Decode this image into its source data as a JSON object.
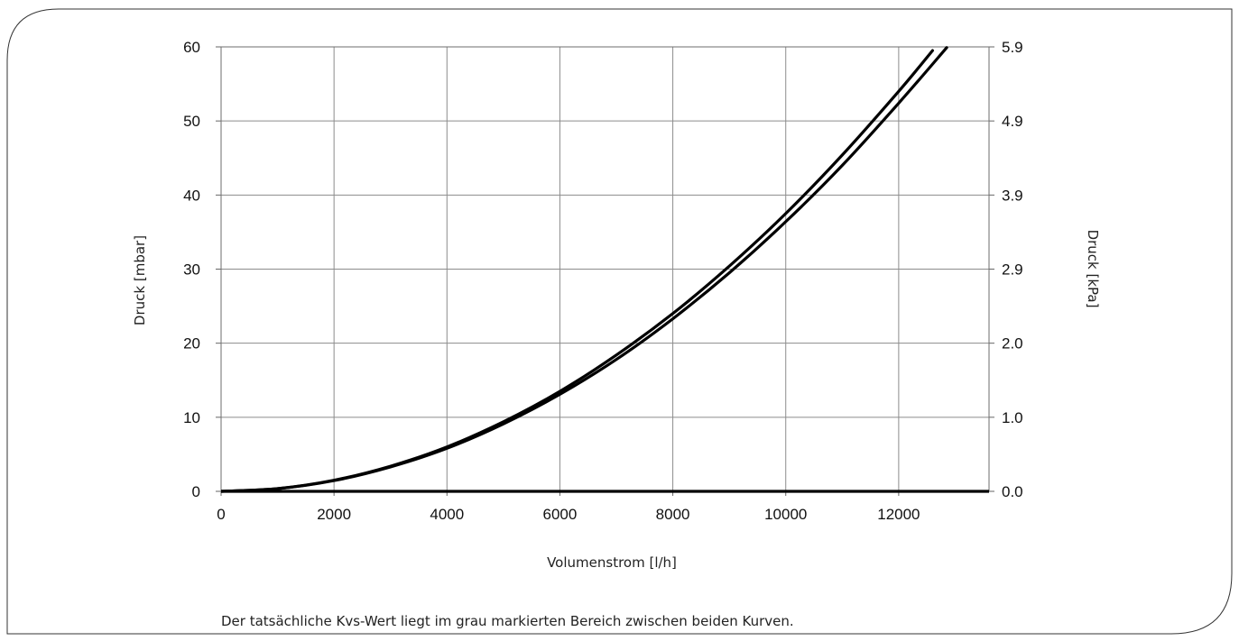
{
  "chart_data": {
    "type": "line",
    "title": "",
    "xlabel": "Volumenstrom [l/h]",
    "ylabel": "Druck [mbar]",
    "y2label": "Druck [kPa]",
    "xlim": [
      0,
      13600
    ],
    "ylim": [
      0,
      60
    ],
    "x_ticks": [
      "0",
      "2000",
      "4000",
      "6000",
      "8000",
      "10000",
      "12000"
    ],
    "x_tick_values": [
      0,
      2000,
      4000,
      6000,
      8000,
      10000,
      12000
    ],
    "y_ticks": [
      "0",
      "10",
      "20",
      "30",
      "40",
      "50",
      "60"
    ],
    "y_tick_values": [
      0,
      10,
      20,
      30,
      40,
      50,
      60
    ],
    "y2_ticks": [
      "0.0",
      "1.0",
      "2.0",
      "2.9",
      "3.9",
      "4.9",
      "5.9"
    ],
    "grid": true,
    "line_color": "#000000",
    "x": [
      0,
      1000,
      2000,
      3000,
      4000,
      5000,
      6000,
      7000,
      8000,
      9000,
      10000,
      11000,
      12000,
      12600,
      12850
    ],
    "series": [
      {
        "values": [
          0,
          0.37,
          1.5,
          3.4,
          6.0,
          9.4,
          13.5,
          18.4,
          24.0,
          30.4,
          37.5,
          45.4,
          54.0,
          59.5,
          null
        ]
      },
      {
        "values": [
          0,
          0.36,
          1.45,
          3.3,
          5.8,
          9.1,
          13.1,
          17.8,
          23.3,
          29.5,
          36.4,
          44.0,
          52.4,
          null,
          59.9
        ]
      }
    ],
    "baseline": {
      "y": 0
    }
  },
  "footnote": "Der tatsächliche Kvs-Wert liegt im grau markierten Bereich zwischen beiden Kurven."
}
